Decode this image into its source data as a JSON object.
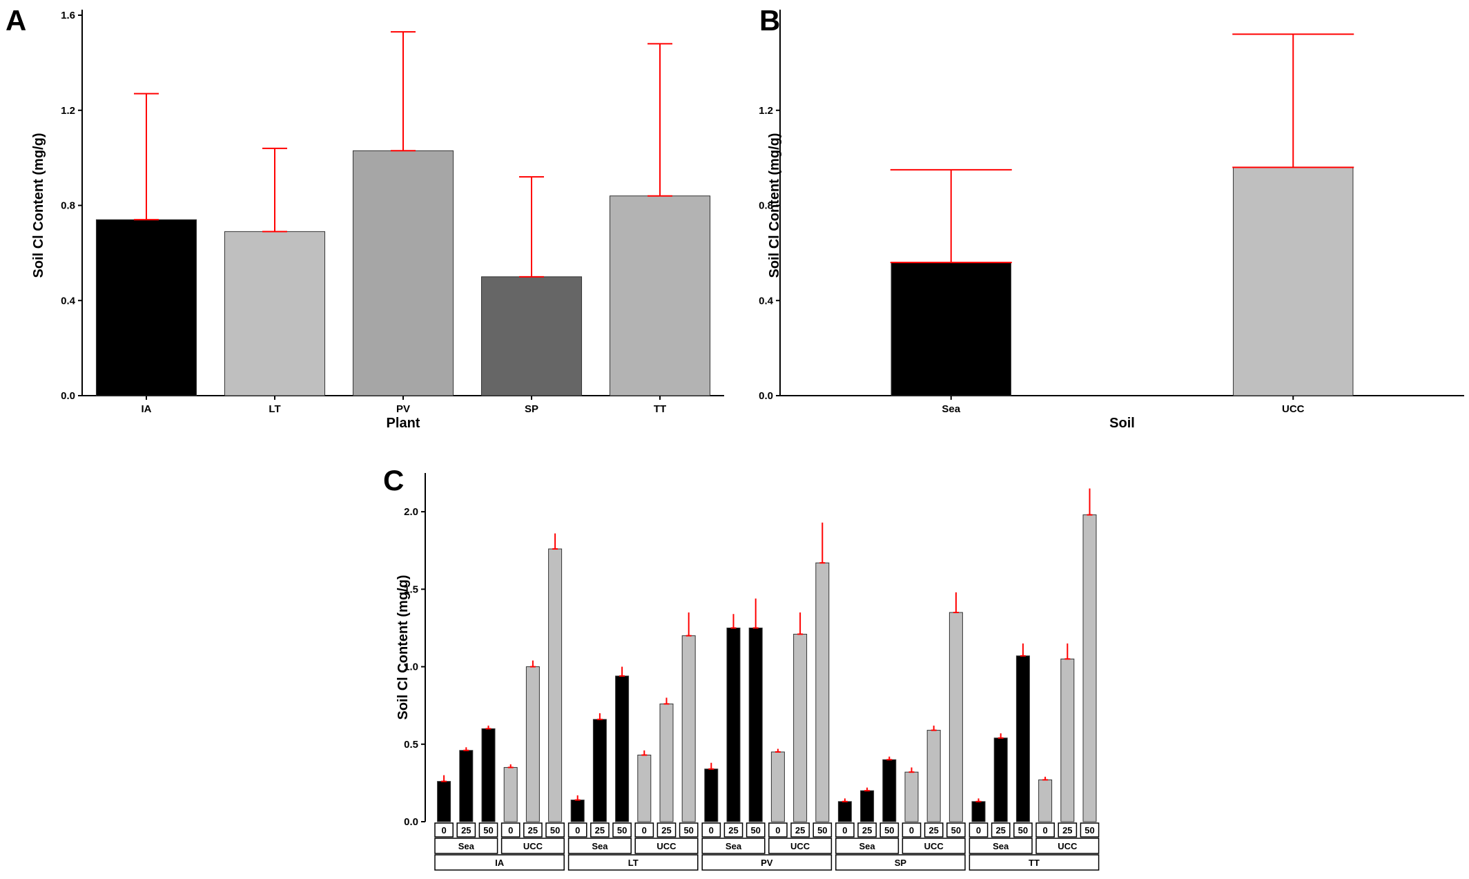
{
  "chart_data": [
    {
      "panel": "A",
      "type": "bar",
      "xlabel": "Plant",
      "ylabel": "Soil Cl Content (mg/g)",
      "ylim": [
        0,
        1.6
      ],
      "yticks": [
        "0.0",
        "0.4",
        "0.8",
        "1.2",
        "1.6"
      ],
      "categories": [
        "IA",
        "LT",
        "PV",
        "SP",
        "TT"
      ],
      "values": [
        0.74,
        0.69,
        1.03,
        0.5,
        0.84
      ],
      "errors": [
        0.53,
        0.35,
        0.5,
        0.42,
        0.64
      ],
      "colors": [
        "#000000",
        "#bfbfbf",
        "#a6a6a6",
        "#666666",
        "#b3b3b3"
      ],
      "error_color": "#ff0000",
      "grid": false
    },
    {
      "panel": "B",
      "type": "bar",
      "xlabel": "Soil",
      "ylabel": "Soil Cl Content (mg/g)",
      "ylim": [
        0,
        1.6
      ],
      "yticks": [
        "0.0",
        "0.4",
        "0.8",
        "1.2"
      ],
      "categories": [
        "Sea",
        "UCC"
      ],
      "values": [
        0.56,
        0.96
      ],
      "errors": [
        0.39,
        0.56
      ],
      "colors": [
        "#000000",
        "#bfbfbf"
      ],
      "error_color": "#ff0000",
      "grid": false
    },
    {
      "panel": "C",
      "type": "bar",
      "ylabel": "Soil Cl Content (mg/g)",
      "ylim": [
        0,
        2.25
      ],
      "yticks": [
        "0.0",
        "0.5",
        "1.0",
        "1.5",
        "2.0"
      ],
      "facets": [
        "IA",
        "LT",
        "PV",
        "SP",
        "TT"
      ],
      "soils": [
        "Sea",
        "UCC"
      ],
      "levels": [
        "0",
        "25",
        "50"
      ],
      "soil_colors": {
        "Sea": "#000000",
        "UCC": "#bfbfbf"
      },
      "error_color": "#ff0000",
      "grid": false,
      "data": {
        "IA": {
          "Sea": [
            0.26,
            0.46,
            0.6
          ],
          "UCC": [
            0.35,
            1.0,
            1.76
          ]
        },
        "LT": {
          "Sea": [
            0.14,
            0.66,
            0.94
          ],
          "UCC": [
            0.43,
            0.76,
            1.2
          ]
        },
        "PV": {
          "Sea": [
            0.34,
            1.25,
            1.25
          ],
          "UCC": [
            0.45,
            1.21,
            1.67
          ]
        },
        "SP": {
          "Sea": [
            0.13,
            0.2,
            0.4
          ],
          "UCC": [
            0.32,
            0.59,
            1.35
          ]
        },
        "TT": {
          "Sea": [
            0.13,
            0.54,
            1.07
          ],
          "UCC": [
            0.27,
            1.05,
            1.98
          ]
        }
      },
      "errors": {
        "IA": {
          "Sea": [
            0.04,
            0.02,
            0.02
          ],
          "UCC": [
            0.02,
            0.04,
            0.1
          ]
        },
        "LT": {
          "Sea": [
            0.03,
            0.04,
            0.06
          ],
          "UCC": [
            0.03,
            0.04,
            0.15
          ]
        },
        "PV": {
          "Sea": [
            0.04,
            0.09,
            0.19
          ],
          "UCC": [
            0.02,
            0.14,
            0.26
          ]
        },
        "SP": {
          "Sea": [
            0.02,
            0.02,
            0.02
          ],
          "UCC": [
            0.03,
            0.03,
            0.13
          ]
        },
        "TT": {
          "Sea": [
            0.02,
            0.03,
            0.08
          ],
          "UCC": [
            0.02,
            0.1,
            0.17
          ]
        }
      }
    }
  ],
  "panel_labels": [
    "A",
    "B",
    "C"
  ]
}
